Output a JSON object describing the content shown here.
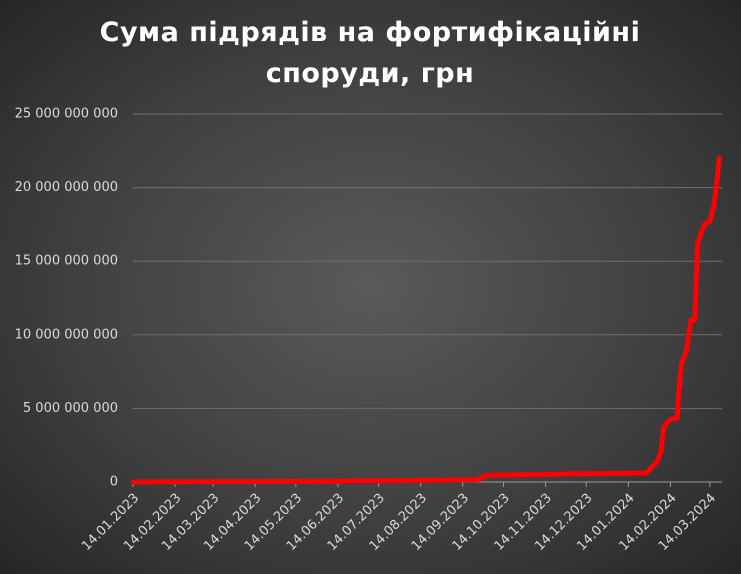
{
  "chart_data": {
    "type": "line",
    "title": "Сума підрядів на фортифікаційні споруди, грн",
    "x": [
      "2023-01-14",
      "2023-06-01",
      "2023-09-25",
      "2023-10-01",
      "2023-12-01",
      "2024-01-27",
      "2024-02-04",
      "2024-02-07",
      "2024-02-09",
      "2024-02-13",
      "2024-02-19",
      "2024-02-20",
      "2024-02-22",
      "2024-02-26",
      "2024-02-29",
      "2024-03-03",
      "2024-03-05",
      "2024-03-10",
      "2024-03-14",
      "2024-03-17",
      "2024-03-19",
      "2024-03-21"
    ],
    "series": [
      {
        "name": "Сума",
        "color": "#ff0000",
        "values": [
          0,
          50000000,
          150000000,
          450000000,
          550000000,
          600000000,
          1360000000,
          2000000000,
          3700000000,
          4200000000,
          4350000000,
          5900000000,
          8000000000,
          9000000000,
          11000000000,
          11000000000,
          16200000000,
          17500000000,
          17700000000,
          18800000000,
          20200000000,
          22000000000
        ]
      }
    ],
    "xlim": [
      "2023-01-14",
      "2024-03-23"
    ],
    "xticks": [
      {
        "value": "2023-01-14",
        "label": "14.01.2023"
      },
      {
        "value": "2023-02-14",
        "label": "14.02.2023"
      },
      {
        "value": "2023-03-14",
        "label": "14.03.2023"
      },
      {
        "value": "2023-04-14",
        "label": "14.04.2023"
      },
      {
        "value": "2023-05-14",
        "label": "14.05.2023"
      },
      {
        "value": "2023-06-14",
        "label": "14.06.2023"
      },
      {
        "value": "2023-07-14",
        "label": "14.07.2023"
      },
      {
        "value": "2023-08-14",
        "label": "14.08.2023"
      },
      {
        "value": "2023-09-14",
        "label": "14.09.2023"
      },
      {
        "value": "2023-10-14",
        "label": "14.10.2023"
      },
      {
        "value": "2023-11-14",
        "label": "14.11.2023"
      },
      {
        "value": "2023-12-14",
        "label": "14.12.2023"
      },
      {
        "value": "2024-01-14",
        "label": "14.01.2024"
      },
      {
        "value": "2024-02-14",
        "label": "14.02.2024"
      },
      {
        "value": "2024-03-14",
        "label": "14.03.2024"
      }
    ],
    "ylim": [
      0,
      25000000000
    ],
    "yticks": [
      0,
      {
        "value": 5000000000,
        "label": "5 000 000 000"
      },
      {
        "value": 10000000000,
        "label": "10 000 000 000"
      },
      {
        "value": 15000000000,
        "label": "15 000 000 000"
      },
      {
        "value": 20000000000,
        "label": "20 000 000 000"
      },
      {
        "value": 25000000000,
        "label": "25 000 000 000"
      }
    ],
    "grid": true
  }
}
